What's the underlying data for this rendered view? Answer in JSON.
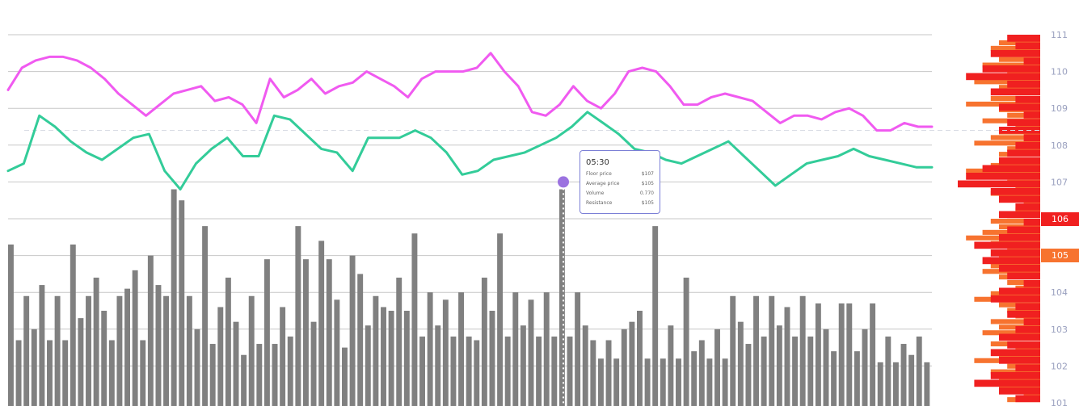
{
  "tooltip": {
    "time": "05:30",
    "rows": [
      {
        "label": "Floor price",
        "value": "$107"
      },
      {
        "label": "Average price",
        "value": "$105"
      },
      {
        "label": "Volume",
        "value": "0.770"
      },
      {
        "label": "Resistance",
        "value": "$105"
      }
    ]
  },
  "current_price_labels": [
    {
      "text": "106",
      "value": 106,
      "color": "#f02020"
    },
    {
      "text": "105",
      "value": 105,
      "color": "#f7732f"
    }
  ],
  "chart_data": {
    "type": "bar",
    "title": "",
    "xlabel": "",
    "ylabel": "",
    "grid": true,
    "ylim": [
      101,
      111
    ],
    "y_ticks": [
      "101",
      "102",
      "103",
      "104",
      "105",
      "106",
      "107",
      "108",
      "109",
      "110",
      "111"
    ],
    "series": [
      {
        "type": "bar",
        "color": "#808080",
        "values": [
          105.3,
          102.7,
          103.9,
          103.0,
          104.2,
          102.7,
          103.9,
          102.7,
          105.3,
          103.3,
          103.9,
          104.4,
          103.5,
          102.7,
          103.9,
          104.1,
          104.6,
          102.7,
          105.0,
          104.2,
          103.9,
          106.8,
          106.5,
          103.9,
          103.0,
          105.8,
          102.6,
          103.6,
          104.4,
          103.2,
          102.3,
          103.9,
          102.6,
          104.9,
          102.6,
          103.6,
          102.8,
          105.8,
          104.9,
          103.2,
          105.4,
          104.9,
          103.8,
          102.5,
          105.0,
          104.5,
          103.1,
          103.9,
          103.6,
          103.5,
          104.4,
          103.5,
          105.6,
          102.8,
          104.0,
          103.1,
          103.8,
          102.8,
          104.0,
          102.8,
          102.7,
          104.4,
          103.5,
          105.6,
          102.8,
          104.0,
          103.1,
          103.8,
          102.8,
          104.0,
          102.8,
          106.8,
          102.8,
          104.0,
          103.1,
          102.7,
          102.2,
          102.7,
          102.2,
          103.0,
          103.2,
          103.5,
          102.2,
          105.8,
          102.2,
          103.1,
          102.2,
          104.4,
          102.4,
          102.7,
          102.2,
          103.0,
          102.2,
          103.9,
          103.2,
          102.6,
          103.9,
          102.8,
          103.9,
          103.1,
          103.6,
          102.8,
          103.9,
          102.8,
          103.7,
          103.0,
          102.4,
          103.7,
          103.7,
          102.4,
          103.0,
          103.7,
          102.1,
          102.8,
          102.1,
          102.6,
          102.3,
          102.8,
          102.1
        ]
      },
      {
        "type": "line",
        "color": "#f05af0",
        "values": [
          109.5,
          110.1,
          110.3,
          110.4,
          110.4,
          110.3,
          110.1,
          109.8,
          109.4,
          109.1,
          108.8,
          109.1,
          109.4,
          109.5,
          109.6,
          109.2,
          109.3,
          109.1,
          108.6,
          109.8,
          109.3,
          109.5,
          109.8,
          109.4,
          109.6,
          109.7,
          110.0,
          109.8,
          109.6,
          109.3,
          109.8,
          110.0,
          110.0,
          110.0,
          110.1,
          110.5,
          110.0,
          109.6,
          108.9,
          108.8,
          109.1,
          109.6,
          109.2,
          109.0,
          109.4,
          110.0,
          110.1,
          110.0,
          109.6,
          109.1,
          109.1,
          109.3,
          109.4,
          109.3,
          109.2,
          108.9,
          108.6,
          108.8,
          108.8,
          108.7,
          108.9,
          109.0,
          108.8,
          108.4,
          108.4,
          108.6,
          108.5,
          108.5
        ]
      },
      {
        "type": "line",
        "color": "#33cc99",
        "values": [
          107.3,
          107.5,
          108.8,
          108.5,
          108.1,
          107.8,
          107.6,
          107.9,
          108.2,
          108.3,
          107.3,
          106.8,
          107.5,
          107.9,
          108.2,
          107.7,
          107.7,
          108.8,
          108.7,
          108.3,
          107.9,
          107.8,
          107.3,
          108.2,
          108.2,
          108.2,
          108.4,
          108.2,
          107.8,
          107.2,
          107.3,
          107.6,
          107.7,
          107.8,
          108.0,
          108.2,
          108.5,
          108.9,
          108.6,
          108.3,
          107.9,
          107.8,
          107.6,
          107.5,
          107.7,
          107.9,
          108.1,
          107.7,
          107.3,
          106.9,
          107.2,
          107.5,
          107.6,
          107.7,
          107.9,
          107.7,
          107.6,
          107.5,
          107.4,
          107.4
        ]
      },
      {
        "type": "bar",
        "orientation": "horizontal",
        "color": "#f7732f",
        "values": [
          0.3,
          0.5,
          0.6,
          0.3,
          0.5,
          0.7,
          0.4,
          0.6,
          0.8,
          0.5,
          0.3,
          0.6,
          0.9,
          0.5,
          0.4,
          0.7,
          0.3,
          0.5,
          0.6,
          0.8,
          0.4,
          0.5,
          0.3,
          0.6,
          0.9,
          0.5,
          0.4,
          0.3,
          0.6,
          0.5,
          0.2,
          0.3,
          0.4,
          0.6,
          0.5,
          0.7,
          0.9,
          0.6,
          0.4,
          0.5,
          0.3,
          0.6,
          0.7,
          0.5,
          0.4,
          0.3,
          0.6,
          0.8,
          0.5,
          0.4,
          0.3,
          0.6,
          0.5,
          0.7,
          0.4,
          0.6,
          0.3,
          0.5,
          0.8,
          0.4,
          0.6,
          0.5,
          0.3,
          0.5,
          0.2,
          0.4
        ]
      },
      {
        "type": "bar",
        "orientation": "horizontal",
        "color": "#f02020",
        "values": [
          0.4,
          0.3,
          0.6,
          0.2,
          0.7,
          0.9,
          0.4,
          0.6,
          0.3,
          0.5,
          0.2,
          0.4,
          0.5,
          0.2,
          0.3,
          0.4,
          0.5,
          0.7,
          0.9,
          1.0,
          0.6,
          0.5,
          0.3,
          0.5,
          0.2,
          0.4,
          0.5,
          0.8,
          0.6,
          0.7,
          0.5,
          0.4,
          0.2,
          0.5,
          0.6,
          0.3,
          0.4,
          0.2,
          0.3,
          0.5,
          0.4,
          0.6,
          0.5,
          0.3,
          0.6,
          0.8,
          0.5,
          0.3
        ]
      }
    ],
    "reference_line": 108.4,
    "highlight_price": 107.0
  }
}
